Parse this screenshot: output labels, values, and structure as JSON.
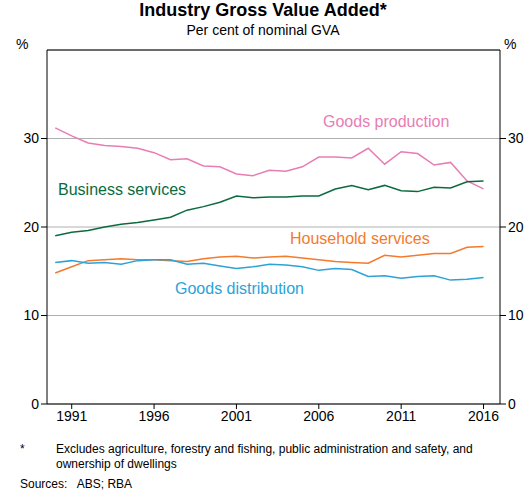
{
  "chart_data": {
    "type": "line",
    "title": "Industry Gross Value Added*",
    "subtitle": "Per cent of nominal GVA",
    "y_label": "%",
    "footnote_marker": "*",
    "footnote": "Excludes agriculture, forestry and fishing, public administration and safety, and ownership of dwellings",
    "source": "Sources:   ABS; RBA",
    "x": [
      1990,
      1991,
      1992,
      1993,
      1994,
      1995,
      1996,
      1997,
      1998,
      1999,
      2000,
      2001,
      2002,
      2003,
      2004,
      2005,
      2006,
      2007,
      2008,
      2009,
      2010,
      2011,
      2012,
      2013,
      2014,
      2015,
      2016
    ],
    "series": [
      {
        "name": "Goods production",
        "color": "#e87db4",
        "values": [
          31.2,
          30.3,
          29.5,
          29.2,
          29.1,
          28.9,
          28.4,
          27.6,
          27.7,
          26.9,
          26.8,
          26.0,
          25.8,
          26.4,
          26.3,
          26.8,
          27.9,
          27.9,
          27.8,
          28.9,
          27.1,
          28.5,
          28.3,
          27.0,
          27.3,
          25.2,
          24.3
        ]
      },
      {
        "name": "Business services",
        "color": "#0b6b3f",
        "values": [
          19.0,
          19.4,
          19.6,
          20.0,
          20.3,
          20.5,
          20.8,
          21.1,
          21.9,
          22.3,
          22.8,
          23.5,
          23.3,
          23.4,
          23.4,
          23.5,
          23.5,
          24.3,
          24.7,
          24.2,
          24.7,
          24.1,
          24.0,
          24.5,
          24.4,
          25.1,
          25.2
        ]
      },
      {
        "name": "Household services",
        "color": "#f47a2c",
        "values": [
          14.8,
          15.5,
          16.2,
          16.3,
          16.4,
          16.3,
          16.3,
          16.2,
          16.1,
          16.4,
          16.6,
          16.7,
          16.5,
          16.6,
          16.7,
          16.5,
          16.3,
          16.1,
          16.0,
          15.9,
          16.8,
          16.6,
          16.8,
          17.0,
          17.0,
          17.7,
          17.8
        ]
      },
      {
        "name": "Goods distribution",
        "color": "#2ba3d8",
        "values": [
          16.0,
          16.2,
          15.9,
          16.0,
          15.8,
          16.2,
          16.3,
          16.3,
          15.8,
          15.9,
          15.6,
          15.3,
          15.5,
          15.8,
          15.7,
          15.5,
          15.1,
          15.3,
          15.2,
          14.4,
          14.5,
          14.2,
          14.4,
          14.5,
          14.0,
          14.1,
          14.3
        ]
      }
    ],
    "xlim": [
      1989.5,
      2017
    ],
    "xticks": [
      1991,
      1996,
      2001,
      2006,
      2011,
      2016
    ],
    "ylim": [
      0,
      40
    ],
    "yticks": [
      0,
      10,
      20,
      30
    ],
    "grid": true
  }
}
